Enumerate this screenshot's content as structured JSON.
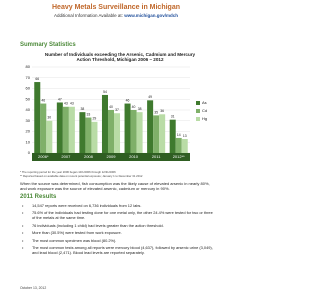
{
  "header": {
    "title": "Heavy Metals Surveillance in Michigan",
    "subtitle": "Additional Information Available at:",
    "url": "www.michigan.gov/mdch"
  },
  "summary_heading": "Summary Statistics",
  "chart_data": {
    "type": "bar",
    "title": "Number of Individuals exceeding the Arsenic, Cadmium and Mercury Action Threshold, Michigan 2006 – 2012",
    "categories": [
      "2006*",
      "2007",
      "2008",
      "2009",
      "2010",
      "2011",
      "2012**"
    ],
    "series": [
      {
        "name": "As",
        "color": "#3f7a2e",
        "values": [
          66,
          47,
          38,
          54,
          46,
          49,
          31
        ]
      },
      {
        "name": "Cd",
        "color": "#7fb069",
        "values": [
          46,
          43,
          33,
          40,
          40,
          35,
          14
        ]
      },
      {
        "name": "Hg",
        "color": "#b9dca6",
        "values": [
          30,
          43,
          29,
          37,
          38,
          36,
          13
        ]
      }
    ],
    "ylim": [
      0,
      80
    ],
    "yticks": [
      0,
      10,
      20,
      30,
      40,
      50,
      60,
      70,
      80
    ],
    "grid": true,
    "legend": "right"
  },
  "footnotes": [
    "* The reporting period for the year 2006 began 10/1/2006 through 12/31/2006",
    "** Reported based on available data on recent potential exposure; January 1 to December 31 2012"
  ],
  "paragraph": "When the source was determined, fish consumption was the likely cause of elevated arsenic in nearly 80%, and work exposure was the source of elevated arsenic, cadmium or mercury in 90%.",
  "results_heading": "2011 Results",
  "bullets": [
    "14,547 reports were received on 6,736 individuals from 12 labs.",
    "75.6% of the individuals had testing done for one metal only, the other 24.4% were tested for two or three of the metals at the same time.",
    "76 individuals (including 1 child) had levels greater than the action threshold.",
    "More than (30.5%) were tested from work exposure.",
    "The most common specimen was blood (80.2%).",
    "The most common tests among all reports were mercury blood (4,637), followed by arsenic urine (3,049), and lead blood (2,471). Blood lead levels are reported separately."
  ],
  "footer": "October 13, 2012"
}
